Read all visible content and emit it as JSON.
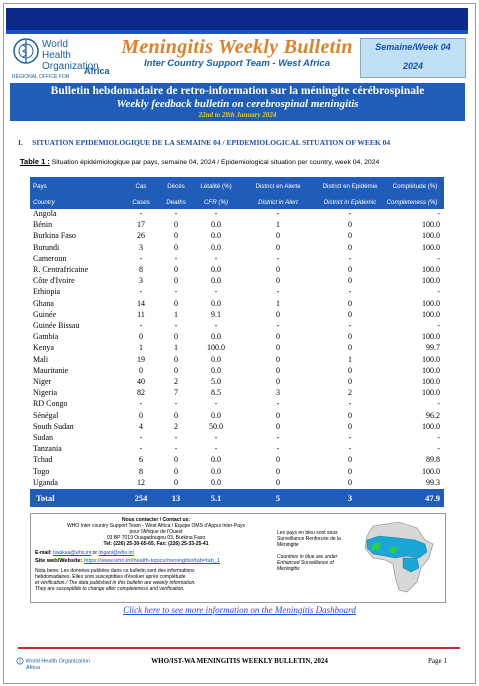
{
  "header": {
    "who_name": "World Health Organization",
    "who_region": "REGIONAL OFFICE FOR",
    "who_africa": "Africa",
    "title": "Meningitis Weekly Bulletin",
    "subtitle": "Inter Country Support Team - West Africa",
    "week_label": "Semaine/Week 04",
    "year": "2024"
  },
  "banner": {
    "title_fr": "Bulletin hebdomadaire de retro-information sur la méningite cérébrospinale",
    "title_en": "Weekly feedback bulletin on cerebrospinal meningitis",
    "date_range": "22nd to 28th January 2024"
  },
  "section": {
    "number": "I.",
    "title": "SITUATION EPIDEMIOLOGIQUE DE LA SEMAINE 04 / EPIDEMIOLOGICAL SITUATION OF WEEK 04"
  },
  "table": {
    "caption_label": "Table 1 :",
    "caption_text": "Situation épidémiologique par pays, semaine 04, 2024 / Epidemiological situation per country, week 04, 2024",
    "headers_fr": [
      "Pays",
      "Cas",
      "Décès",
      "Létalité (%)",
      "District en Alerte",
      "District en Epidémie",
      "Complétude (%)"
    ],
    "headers_en": [
      "Country",
      "Cases",
      "Deaths",
      "CFR (%)",
      "District in Alert",
      "District in Epidemic",
      "Completeness (%)"
    ],
    "rows": [
      {
        "country": "Angola",
        "cases": "-",
        "deaths": "-",
        "cfr": "-",
        "alert": "-",
        "epidemic": "-",
        "completeness": "-"
      },
      {
        "country": "Bénin",
        "cases": "17",
        "deaths": "0",
        "cfr": "0.0",
        "alert": "1",
        "epidemic": "0",
        "completeness": "100.0"
      },
      {
        "country": "Burkina Faso",
        "cases": "26",
        "deaths": "0",
        "cfr": "0.0",
        "alert": "0",
        "epidemic": "0",
        "completeness": "100.0"
      },
      {
        "country": "Burundi",
        "cases": "3",
        "deaths": "0",
        "cfr": "0.0",
        "alert": "0",
        "epidemic": "0",
        "completeness": "100.0"
      },
      {
        "country": "Cameroun",
        "cases": "-",
        "deaths": "-",
        "cfr": "-",
        "alert": "-",
        "epidemic": "-",
        "completeness": "-"
      },
      {
        "country": "R. Centrafricaine",
        "cases": "8",
        "deaths": "0",
        "cfr": "0.0",
        "alert": "0",
        "epidemic": "0",
        "completeness": "100.0"
      },
      {
        "country": "Côte d'Ivoire",
        "cases": "3",
        "deaths": "0",
        "cfr": "0.0",
        "alert": "0",
        "epidemic": "0",
        "completeness": "100.0"
      },
      {
        "country": "Ethiopia",
        "cases": "-",
        "deaths": "-",
        "cfr": "-",
        "alert": "-",
        "epidemic": "-",
        "completeness": "-"
      },
      {
        "country": "Ghana",
        "cases": "14",
        "deaths": "0",
        "cfr": "0.0",
        "alert": "1",
        "epidemic": "0",
        "completeness": "100.0"
      },
      {
        "country": "Guinée",
        "cases": "11",
        "deaths": "1",
        "cfr": "9.1",
        "alert": "0",
        "epidemic": "0",
        "completeness": "100.0"
      },
      {
        "country": "Guinée Bissau",
        "cases": "-",
        "deaths": "-",
        "cfr": "-",
        "alert": "-",
        "epidemic": "-",
        "completeness": "-"
      },
      {
        "country": "Gambia",
        "cases": "0",
        "deaths": "0",
        "cfr": "0.0",
        "alert": "0",
        "epidemic": "0",
        "completeness": "100.0"
      },
      {
        "country": "Kenya",
        "cases": "1",
        "deaths": "1",
        "cfr": "100.0",
        "alert": "0",
        "epidemic": "0",
        "completeness": "99.7"
      },
      {
        "country": "Mali",
        "cases": "19",
        "deaths": "0",
        "cfr": "0.0",
        "alert": "0",
        "epidemic": "1",
        "completeness": "100.0"
      },
      {
        "country": "Mauritanie",
        "cases": "0",
        "deaths": "0",
        "cfr": "0.0",
        "alert": "0",
        "epidemic": "0",
        "completeness": "100.0"
      },
      {
        "country": "Niger",
        "cases": "40",
        "deaths": "2",
        "cfr": "5.0",
        "alert": "0",
        "epidemic": "0",
        "completeness": "100.0"
      },
      {
        "country": "Nigeria",
        "cases": "82",
        "deaths": "7",
        "cfr": "8.5",
        "alert": "3",
        "epidemic": "2",
        "completeness": "100.0"
      },
      {
        "country": "RD Congo",
        "cases": "-",
        "deaths": "-",
        "cfr": "-",
        "alert": "-",
        "epidemic": "-",
        "completeness": "-"
      },
      {
        "country": "Sénégal",
        "cases": "0",
        "deaths": "0",
        "cfr": "0.0",
        "alert": "0",
        "epidemic": "0",
        "completeness": "96.2"
      },
      {
        "country": "South Sudan",
        "cases": "4",
        "deaths": "2",
        "cfr": "50.0",
        "alert": "0",
        "epidemic": "0",
        "completeness": "100.0"
      },
      {
        "country": "Sudan",
        "cases": "-",
        "deaths": "-",
        "cfr": "-",
        "alert": "-",
        "epidemic": "-",
        "completeness": "-"
      },
      {
        "country": "Tanzania",
        "cases": "-",
        "deaths": "-",
        "cfr": "-",
        "alert": "-",
        "epidemic": "-",
        "completeness": "-"
      },
      {
        "country": "Tchad",
        "cases": "6",
        "deaths": "0",
        "cfr": "0.0",
        "alert": "0",
        "epidemic": "0",
        "completeness": "89.8"
      },
      {
        "country": "Togo",
        "cases": "8",
        "deaths": "0",
        "cfr": "0.0",
        "alert": "0",
        "epidemic": "0",
        "completeness": "100.0"
      },
      {
        "country": "Uganda",
        "cases": "12",
        "deaths": "0",
        "cfr": "0.0",
        "alert": "0",
        "epidemic": "0",
        "completeness": "99.3"
      }
    ],
    "total": {
      "label": "Total",
      "cases": "254",
      "deaths": "13",
      "cfr": "5.1",
      "alert": "5",
      "epidemic": "3",
      "completeness": "47.9"
    }
  },
  "contact": {
    "title": "Nous contacter / Contact us:",
    "line1": "WHO Inter country Support Team - West Africa / Equipe OMS d'Appui Inter-Pays",
    "line2": "pour l'Afrique de l'Ouest",
    "line3": "03 BP 7019 Ouagadougou 03,  Burkina Faso",
    "line4": "Tel: (226) 25-30-65-65, Fax: (226) 25-33-25-41",
    "email_label": "E-mail:",
    "email1": "bwakaa@who.int",
    "email_sep": "or",
    "email2": "lingani@who.int",
    "web_label": "Site web/Website:",
    "web": "https://www.who.int/health-topics/meningitis#tab=tab_1",
    "note1": "Nota bene: Les données publiées dans ce bulletin sont des informations",
    "note2": "hebdomadaires. Elles sont susceptibles d'évoluer après complétude",
    "note3": "et vérification./ The data published in this bulletin are weekly information.",
    "note4": "They are susceptible to change after completeness and verification.",
    "map_fr1": "Les pays en bleu sont sous",
    "map_fr2": "Surveillance Renforcée de la",
    "map_fr3": "Méningite",
    "map_en1": "Countries in blue are under",
    "map_en2": "Enhanced Surveillance of",
    "map_en3": "Meningitis"
  },
  "dashboard_link": "Click here to see more information on the Meningitis Dashboard",
  "footer": {
    "who_name": "World Health Organization",
    "who_africa": "Africa",
    "title": "WHO/IST-WA MENINGITIS WEEKLY BULLETIN, 2024",
    "page": "Page 1"
  },
  "colors": {
    "navy": "#0b2a8a",
    "blue": "#1f5db8",
    "orange": "#e0812a",
    "week_box": "#bfe0f5",
    "link": "#1a4ff0",
    "footer_line": "#c03030"
  }
}
